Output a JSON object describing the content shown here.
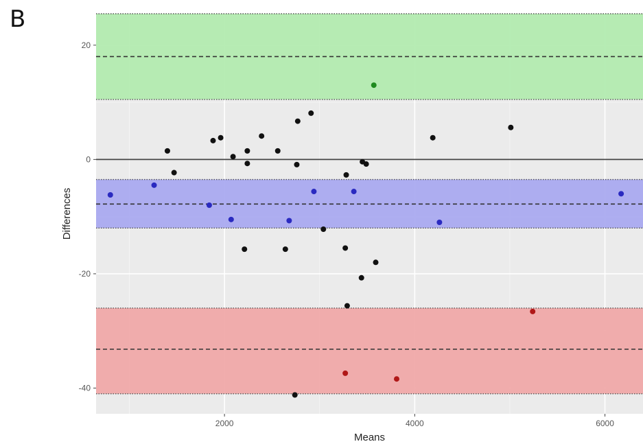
{
  "panel_label": "B",
  "chart_data": {
    "type": "scatter",
    "title": "",
    "xlabel": "Means",
    "ylabel": "Differences",
    "xlim": [
      650,
      6400
    ],
    "ylim": [
      -44.5,
      25.5
    ],
    "grid": true,
    "x_ticks": [
      2000,
      4000,
      6000
    ],
    "y_ticks": [
      -40,
      -20,
      0,
      20
    ],
    "zero_line": 0,
    "bands": [
      {
        "color": "#b3ebb0",
        "from": 10.5,
        "to": 25.5,
        "mean": 18
      },
      {
        "color": "#aaaaf0",
        "from": -12,
        "to": -3.5,
        "mean": -7.8
      },
      {
        "color": "#f0a9a9",
        "from": -41,
        "to": -26,
        "mean": -33.2
      }
    ],
    "point_colors": {
      "default": "#111111",
      "upper": "#1f8a1f",
      "mid": "#2a2ac0",
      "lower": "#b01818"
    },
    "points": [
      {
        "x": 3570,
        "y": 13,
        "group": "upper"
      },
      {
        "x": 1400,
        "y": 1.5,
        "group": "default"
      },
      {
        "x": 1470,
        "y": -2.3,
        "group": "default"
      },
      {
        "x": 1880,
        "y": 3.3,
        "group": "default"
      },
      {
        "x": 1960,
        "y": 3.8,
        "group": "default"
      },
      {
        "x": 2090,
        "y": 0.5,
        "group": "default"
      },
      {
        "x": 2240,
        "y": 1.5,
        "group": "default"
      },
      {
        "x": 2240,
        "y": -0.7,
        "group": "default"
      },
      {
        "x": 2390,
        "y": 4.1,
        "group": "default"
      },
      {
        "x": 2560,
        "y": 1.5,
        "group": "default"
      },
      {
        "x": 2760,
        "y": -0.9,
        "group": "default"
      },
      {
        "x": 2770,
        "y": 6.7,
        "group": "default"
      },
      {
        "x": 2910,
        "y": 8.1,
        "group": "default"
      },
      {
        "x": 3280,
        "y": -2.7,
        "group": "default"
      },
      {
        "x": 3450,
        "y": -0.4,
        "group": "default"
      },
      {
        "x": 3490,
        "y": -0.8,
        "group": "default"
      },
      {
        "x": 4190,
        "y": 3.8,
        "group": "default"
      },
      {
        "x": 5010,
        "y": 5.6,
        "group": "default"
      },
      {
        "x": 800,
        "y": -6.2,
        "group": "mid"
      },
      {
        "x": 1260,
        "y": -4.5,
        "group": "mid"
      },
      {
        "x": 1840,
        "y": -8,
        "group": "mid"
      },
      {
        "x": 2070,
        "y": -10.5,
        "group": "mid"
      },
      {
        "x": 2680,
        "y": -10.7,
        "group": "mid"
      },
      {
        "x": 2940,
        "y": -5.6,
        "group": "mid"
      },
      {
        "x": 3360,
        "y": -5.6,
        "group": "mid"
      },
      {
        "x": 4260,
        "y": -11,
        "group": "mid"
      },
      {
        "x": 6170,
        "y": -6,
        "group": "mid"
      },
      {
        "x": 3040,
        "y": -12.2,
        "group": "default"
      },
      {
        "x": 2210,
        "y": -15.7,
        "group": "default"
      },
      {
        "x": 2640,
        "y": -15.7,
        "group": "default"
      },
      {
        "x": 3270,
        "y": -15.5,
        "group": "default"
      },
      {
        "x": 3590,
        "y": -18,
        "group": "default"
      },
      {
        "x": 3440,
        "y": -20.7,
        "group": "default"
      },
      {
        "x": 3290,
        "y": -25.6,
        "group": "default"
      },
      {
        "x": 5240,
        "y": -26.6,
        "group": "lower"
      },
      {
        "x": 3270,
        "y": -37.4,
        "group": "lower"
      },
      {
        "x": 3810,
        "y": -38.4,
        "group": "lower"
      },
      {
        "x": 2740,
        "y": -41.2,
        "group": "default"
      }
    ]
  }
}
